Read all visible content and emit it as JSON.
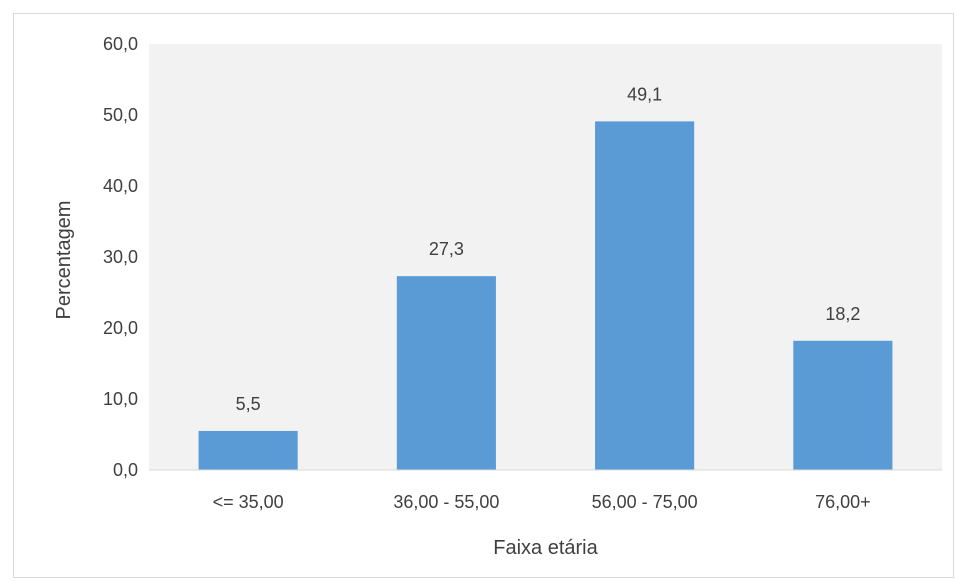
{
  "chart_data": {
    "type": "bar",
    "categories": [
      "<= 35,00",
      "36,00 - 55,00",
      "56,00 - 75,00",
      "76,00+"
    ],
    "values": [
      5.5,
      27.3,
      49.1,
      18.2
    ],
    "data_labels": [
      "5,5",
      "27,3",
      "49,1",
      "18,2"
    ],
    "title": "",
    "xlabel": "Faixa etária",
    "ylabel": "Percentagem",
    "ylim": [
      0,
      60
    ],
    "yticks": [
      0,
      10,
      20,
      30,
      40,
      50,
      60
    ],
    "ytick_labels": [
      "0,0",
      "10,0",
      "20,0",
      "30,0",
      "40,0",
      "50,0",
      "60,0"
    ],
    "grid": false,
    "legend": "none",
    "colors": {
      "bar": "#5b9bd5",
      "plot_background": "#f2f2f2",
      "axis_line": "#d9d9d9",
      "text": "#404040"
    }
  }
}
